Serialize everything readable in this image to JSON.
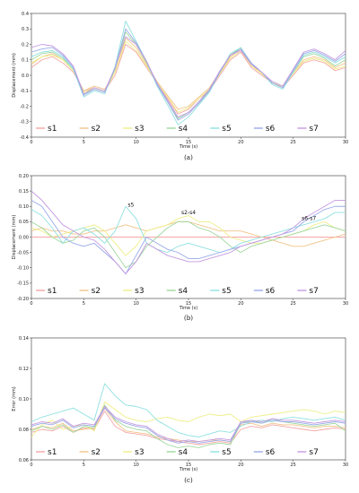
{
  "colors": [
    "#f4a6a6",
    "#f2c48a",
    "#eeee88",
    "#9fd89f",
    "#8fe0e0",
    "#9aaae8",
    "#c49ae0"
  ],
  "chart_data": [
    {
      "type": "line",
      "panel_label": "(a)",
      "xlabel": "Time (s)",
      "ylabel": "Displacement (mm)",
      "xlim": [
        0,
        30
      ],
      "ylim": [
        -0.4,
        0.4
      ],
      "xticks": [
        0,
        5,
        10,
        15,
        20,
        25,
        30
      ],
      "yticks": [
        -0.4,
        -0.3,
        -0.2,
        -0.1,
        0.0,
        0.1,
        0.2,
        0.3,
        0.4
      ],
      "legend": {
        "placement": "bottom",
        "entries": [
          "s1",
          "s2",
          "s3",
          "s4",
          "s5",
          "s6",
          "s7"
        ]
      },
      "x": [
        0,
        1,
        2,
        3,
        4,
        5,
        6,
        7,
        8,
        9,
        10,
        11,
        12,
        13,
        14,
        15,
        16,
        17,
        18,
        19,
        20,
        21,
        22,
        23,
        24,
        25,
        26,
        27,
        28,
        29,
        30
      ],
      "series": [
        {
          "name": "s1",
          "values": [
            0.05,
            0.1,
            0.12,
            0.08,
            0.02,
            -0.1,
            -0.08,
            -0.1,
            0.0,
            0.2,
            0.15,
            0.05,
            -0.05,
            -0.15,
            -0.25,
            -0.22,
            -0.15,
            -0.1,
            0.0,
            0.1,
            0.15,
            0.05,
            0.0,
            -0.05,
            -0.08,
            0.0,
            0.08,
            0.1,
            0.08,
            0.03,
            0.05
          ]
        },
        {
          "name": "s2",
          "values": [
            0.07,
            0.12,
            0.14,
            0.1,
            0.03,
            -0.1,
            -0.07,
            -0.09,
            0.02,
            0.24,
            0.18,
            0.07,
            -0.04,
            -0.13,
            -0.22,
            -0.2,
            -0.14,
            -0.08,
            0.02,
            0.12,
            0.17,
            0.07,
            0.01,
            -0.04,
            -0.07,
            0.02,
            0.1,
            0.12,
            0.1,
            0.05,
            0.08
          ]
        },
        {
          "name": "s3",
          "values": [
            0.08,
            0.12,
            0.13,
            0.1,
            0.03,
            -0.11,
            -0.08,
            -0.1,
            0.02,
            0.22,
            0.16,
            0.06,
            -0.05,
            -0.14,
            -0.24,
            -0.21,
            -0.15,
            -0.09,
            0.01,
            0.11,
            0.16,
            0.06,
            0.01,
            -0.05,
            -0.07,
            0.01,
            0.09,
            0.11,
            0.09,
            0.04,
            0.06
          ]
        },
        {
          "name": "s4",
          "values": [
            0.1,
            0.14,
            0.15,
            0.11,
            0.04,
            -0.12,
            -0.09,
            -0.11,
            0.04,
            0.28,
            0.2,
            0.08,
            -0.06,
            -0.17,
            -0.28,
            -0.24,
            -0.17,
            -0.1,
            0.02,
            0.13,
            0.18,
            0.07,
            0.02,
            -0.05,
            -0.08,
            0.02,
            0.12,
            0.14,
            0.11,
            0.06,
            0.1
          ]
        },
        {
          "name": "s5",
          "values": [
            0.12,
            0.15,
            0.16,
            0.12,
            0.04,
            -0.14,
            -0.1,
            -0.12,
            0.06,
            0.35,
            0.22,
            0.09,
            -0.07,
            -0.19,
            -0.32,
            -0.27,
            -0.19,
            -0.11,
            0.02,
            0.14,
            0.18,
            0.08,
            0.02,
            -0.06,
            -0.09,
            0.02,
            0.13,
            0.15,
            0.12,
            0.08,
            0.12
          ]
        },
        {
          "name": "s6",
          "values": [
            0.15,
            0.17,
            0.18,
            0.13,
            0.05,
            -0.13,
            -0.09,
            -0.11,
            0.05,
            0.3,
            0.21,
            0.09,
            -0.06,
            -0.17,
            -0.29,
            -0.25,
            -0.18,
            -0.1,
            0.02,
            0.13,
            0.17,
            0.08,
            0.02,
            -0.05,
            -0.08,
            0.03,
            0.14,
            0.16,
            0.13,
            0.09,
            0.14
          ]
        },
        {
          "name": "s7",
          "values": [
            0.18,
            0.2,
            0.19,
            0.14,
            0.06,
            -0.12,
            -0.08,
            -0.1,
            0.05,
            0.25,
            0.2,
            0.09,
            -0.05,
            -0.16,
            -0.27,
            -0.24,
            -0.17,
            -0.09,
            0.03,
            0.13,
            0.16,
            0.07,
            0.02,
            -0.04,
            -0.07,
            0.04,
            0.15,
            0.17,
            0.14,
            0.1,
            0.16
          ]
        }
      ]
    },
    {
      "type": "line",
      "panel_label": "(b)",
      "xlabel": "Time (s)",
      "ylabel": "Displacement (mm)",
      "xlim": [
        0,
        30
      ],
      "ylim": [
        -0.2,
        0.2
      ],
      "xticks": [
        0,
        5,
        10,
        15,
        20,
        25,
        30
      ],
      "yticks": [
        -0.2,
        -0.15,
        -0.1,
        -0.05,
        0.0,
        0.05,
        0.1,
        0.15,
        0.2
      ],
      "legend": {
        "placement": "bottom",
        "entries": [
          "s1",
          "s2",
          "s3",
          "s4",
          "s5",
          "s6",
          "s7"
        ]
      },
      "annotations": [
        {
          "text": "s5",
          "x": 9.5,
          "y": 0.1
        },
        {
          "text": "s2-s4",
          "x": 15,
          "y": 0.075
        },
        {
          "text": "s6-s7",
          "x": 26.5,
          "y": 0.055
        }
      ],
      "x": [
        0,
        1,
        2,
        3,
        4,
        5,
        6,
        7,
        8,
        9,
        10,
        11,
        12,
        13,
        14,
        15,
        16,
        17,
        18,
        19,
        20,
        21,
        22,
        23,
        24,
        25,
        26,
        27,
        28,
        29,
        30
      ],
      "series": [
        {
          "name": "s1",
          "values": [
            0.0,
            0.0,
            0.0,
            0.0,
            0.0,
            0.0,
            0.0,
            0.0,
            0.0,
            0.0,
            0.0,
            0.0,
            0.0,
            0.0,
            0.0,
            0.0,
            0.0,
            0.0,
            0.0,
            0.0,
            0.0,
            0.0,
            0.0,
            0.0,
            0.0,
            0.0,
            0.0,
            0.0,
            0.0,
            0.0,
            0.0
          ]
        },
        {
          "name": "s2",
          "values": [
            0.02,
            0.03,
            0.02,
            0.02,
            0.01,
            0.01,
            0.02,
            0.02,
            0.03,
            0.04,
            0.03,
            0.02,
            0.03,
            0.04,
            0.05,
            0.05,
            0.04,
            0.03,
            0.02,
            0.02,
            0.02,
            0.01,
            0.0,
            -0.01,
            -0.02,
            -0.03,
            -0.03,
            -0.02,
            -0.01,
            0.0,
            0.01
          ]
        },
        {
          "name": "s3",
          "values": [
            0.03,
            0.02,
            0.0,
            0.01,
            0.02,
            0.03,
            0.04,
            0.02,
            -0.02,
            -0.06,
            -0.03,
            0.02,
            0.03,
            0.04,
            0.06,
            0.07,
            0.05,
            0.05,
            0.03,
            0.0,
            -0.01,
            -0.02,
            -0.02,
            -0.01,
            0.0,
            0.01,
            0.02,
            0.04,
            0.05,
            0.03,
            0.02
          ]
        },
        {
          "name": "s4",
          "values": [
            0.05,
            0.03,
            0.0,
            -0.02,
            -0.01,
            0.02,
            0.03,
            0.0,
            -0.05,
            -0.1,
            -0.08,
            -0.03,
            0.0,
            0.03,
            0.05,
            0.05,
            0.03,
            0.02,
            0.0,
            -0.03,
            -0.05,
            -0.03,
            -0.02,
            -0.01,
            0.0,
            0.01,
            0.02,
            0.03,
            0.04,
            0.03,
            0.02
          ]
        },
        {
          "name": "s5",
          "values": [
            0.09,
            0.07,
            0.03,
            -0.02,
            0.02,
            0.03,
            0.01,
            -0.02,
            0.02,
            0.1,
            0.06,
            -0.02,
            -0.04,
            -0.05,
            -0.03,
            -0.02,
            -0.03,
            -0.04,
            -0.05,
            -0.04,
            -0.02,
            -0.01,
            0.0,
            0.01,
            0.02,
            0.03,
            0.04,
            0.05,
            0.06,
            0.08,
            0.08
          ]
        },
        {
          "name": "s6",
          "values": [
            0.12,
            0.1,
            0.05,
            0.0,
            -0.02,
            -0.03,
            -0.02,
            -0.05,
            -0.08,
            -0.12,
            -0.06,
            0.0,
            -0.02,
            -0.04,
            -0.05,
            -0.07,
            -0.07,
            -0.06,
            -0.05,
            -0.04,
            -0.03,
            -0.02,
            -0.01,
            0.0,
            0.01,
            0.02,
            0.05,
            0.07,
            0.09,
            0.1,
            0.1
          ]
        },
        {
          "name": "s7",
          "values": [
            0.15,
            0.12,
            0.08,
            0.04,
            0.02,
            0.0,
            -0.01,
            -0.04,
            -0.08,
            -0.12,
            -0.08,
            -0.02,
            -0.04,
            -0.06,
            -0.07,
            -0.08,
            -0.08,
            -0.07,
            -0.06,
            -0.05,
            -0.03,
            -0.02,
            -0.01,
            0.0,
            0.01,
            0.03,
            0.06,
            0.08,
            0.1,
            0.12,
            0.12
          ]
        }
      ]
    },
    {
      "type": "line",
      "panel_label": "(c)",
      "xlabel": "Time (s)",
      "ylabel": "Error (mm)",
      "xlim": [
        0,
        30
      ],
      "ylim": [
        0.06,
        0.14
      ],
      "xticks": [
        0,
        5,
        10,
        15,
        20,
        25,
        30
      ],
      "yticks": [
        0.06,
        0.08,
        0.1,
        0.12,
        0.14
      ],
      "legend": {
        "placement": "bottom",
        "entries": [
          "s1",
          "s2",
          "s3",
          "s4",
          "s5",
          "s6",
          "s7"
        ]
      },
      "x": [
        0,
        1,
        2,
        3,
        4,
        5,
        6,
        7,
        8,
        9,
        10,
        11,
        12,
        13,
        14,
        15,
        16,
        17,
        18,
        19,
        20,
        21,
        22,
        23,
        24,
        25,
        26,
        27,
        28,
        29,
        30
      ],
      "series": [
        {
          "name": "s1",
          "values": [
            0.078,
            0.08,
            0.079,
            0.082,
            0.078,
            0.081,
            0.08,
            0.092,
            0.082,
            0.078,
            0.077,
            0.076,
            0.074,
            0.073,
            0.072,
            0.071,
            0.07,
            0.071,
            0.072,
            0.071,
            0.08,
            0.082,
            0.081,
            0.083,
            0.082,
            0.081,
            0.08,
            0.079,
            0.08,
            0.081,
            0.08
          ]
        },
        {
          "name": "s2",
          "values": [
            0.08,
            0.082,
            0.081,
            0.084,
            0.079,
            0.08,
            0.081,
            0.094,
            0.085,
            0.079,
            0.078,
            0.077,
            0.075,
            0.074,
            0.073,
            0.072,
            0.072,
            0.073,
            0.073,
            0.072,
            0.083,
            0.084,
            0.082,
            0.084,
            0.083,
            0.083,
            0.082,
            0.081,
            0.082,
            0.082,
            0.081
          ]
        },
        {
          "name": "s3",
          "values": [
            0.075,
            0.083,
            0.086,
            0.08,
            0.082,
            0.083,
            0.079,
            0.098,
            0.093,
            0.088,
            0.086,
            0.085,
            0.087,
            0.088,
            0.086,
            0.085,
            0.088,
            0.09,
            0.089,
            0.09,
            0.085,
            0.088,
            0.089,
            0.09,
            0.091,
            0.092,
            0.093,
            0.092,
            0.09,
            0.092,
            0.091
          ]
        },
        {
          "name": "s4",
          "values": [
            0.079,
            0.082,
            0.08,
            0.083,
            0.078,
            0.082,
            0.081,
            0.096,
            0.086,
            0.082,
            0.08,
            0.079,
            0.074,
            0.07,
            0.068,
            0.069,
            0.068,
            0.07,
            0.071,
            0.07,
            0.084,
            0.086,
            0.084,
            0.087,
            0.085,
            0.084,
            0.083,
            0.082,
            0.083,
            0.084,
            0.079
          ]
        },
        {
          "name": "s5",
          "values": [
            0.085,
            0.088,
            0.09,
            0.092,
            0.094,
            0.09,
            0.086,
            0.11,
            0.102,
            0.096,
            0.095,
            0.093,
            0.086,
            0.082,
            0.078,
            0.076,
            0.075,
            0.077,
            0.079,
            0.078,
            0.082,
            0.085,
            0.086,
            0.085,
            0.087,
            0.088,
            0.087,
            0.086,
            0.087,
            0.088,
            0.086
          ]
        },
        {
          "name": "s6",
          "values": [
            0.082,
            0.084,
            0.083,
            0.086,
            0.081,
            0.083,
            0.082,
            0.094,
            0.087,
            0.084,
            0.082,
            0.081,
            0.076,
            0.073,
            0.071,
            0.072,
            0.071,
            0.072,
            0.073,
            0.072,
            0.084,
            0.085,
            0.084,
            0.086,
            0.085,
            0.085,
            0.084,
            0.083,
            0.084,
            0.085,
            0.084
          ]
        },
        {
          "name": "s7",
          "values": [
            0.083,
            0.085,
            0.084,
            0.087,
            0.082,
            0.084,
            0.083,
            0.095,
            0.088,
            0.085,
            0.083,
            0.082,
            0.077,
            0.074,
            0.072,
            0.073,
            0.072,
            0.073,
            0.074,
            0.073,
            0.085,
            0.086,
            0.085,
            0.087,
            0.086,
            0.086,
            0.085,
            0.084,
            0.085,
            0.086,
            0.085
          ]
        }
      ]
    }
  ]
}
